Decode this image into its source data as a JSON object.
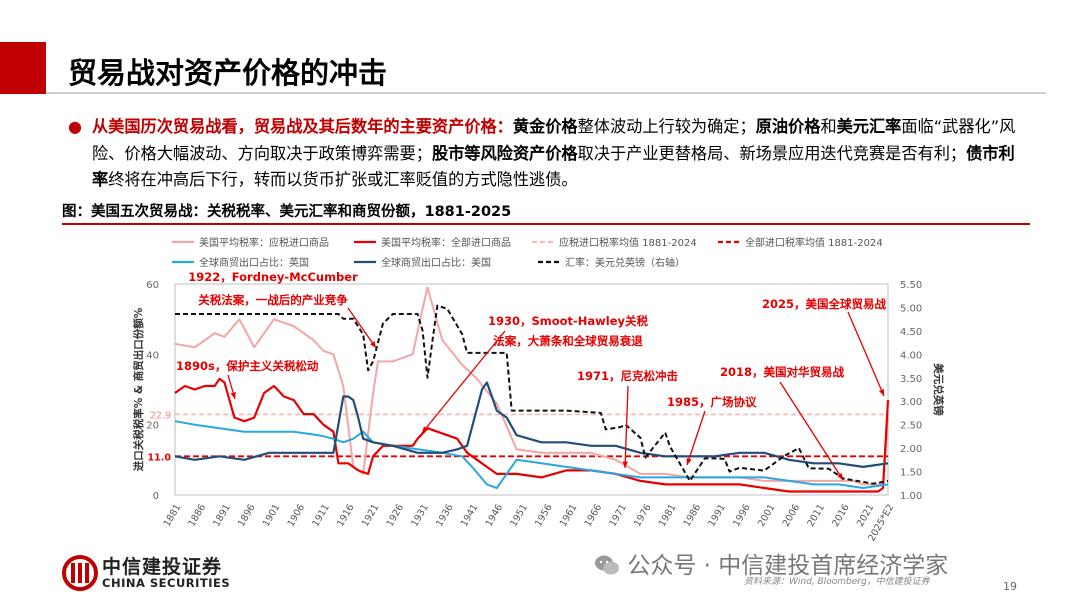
{
  "title": "贸易战对资产价格的冲击",
  "bullet": {
    "r1": "从美国历次贸易战看，贸易战及其后数年的主要资产价格：",
    "b1": "黄金价格",
    "t1": "整体波动上行较为确定；",
    "b2": "原油价格",
    "t2": "和",
    "b3": "美元汇率",
    "t3": "面临“武器化”风险、价格大幅波动、方向取决于政策博弈需要；",
    "b4": "股市等风险资产价格",
    "t4": "取决于产业更替格局、新场景应用迭代竞赛是否有利；",
    "b5": "债市利率",
    "t5": "终将在冲高后下行，转而以货币扩张或汇率贬值的方式隐性逃债。"
  },
  "figure_title": "图：美国五次贸易战：关税税率、美元汇率和商贸份额，1881-2025",
  "footer": {
    "logo_cn": "中信建投证券",
    "logo_en": "CHINA SECURITIES",
    "wechat": "公众号 · 中信建投首席经济学家",
    "source": "资料来源：Wind, Bloomberg，中信建投证券",
    "page": "19"
  },
  "colors": {
    "accent": "#c00000",
    "dutiable": "#f4a6a6",
    "all": "#e60000",
    "dutiable_avg": "#f4b8b8",
    "all_avg": "#e60000",
    "uk": "#29a8e0",
    "us": "#1f4e79",
    "fx": "#111111"
  },
  "chart_data": {
    "type": "line",
    "xlabel": "",
    "ylabel": "进口关税税率% & 商贸出口份额%",
    "y2label": "美元兑英镑",
    "ylim": [
      0,
      60
    ],
    "y2lim": [
      1.0,
      5.5
    ],
    "yticks": [
      "0",
      "20",
      "40",
      "60"
    ],
    "y2ticks": [
      "1.00",
      "1.50",
      "2.00",
      "2.50",
      "3.00",
      "3.50",
      "4.00",
      "4.50",
      "5.00",
      "5.50"
    ],
    "xticks": [
      "1881",
      "1886",
      "1891",
      "1896",
      "1901",
      "1906",
      "1911",
      "1916",
      "1921",
      "1926",
      "1931",
      "1936",
      "1941",
      "1946",
      "1951",
      "1956",
      "1961",
      "1966",
      "1971",
      "1976",
      "1981",
      "1986",
      "1991",
      "1996",
      "2001",
      "2006",
      "2011",
      "2016",
      "2021",
      "2025*E2"
    ],
    "legend": [
      "美国平均税率：应税进口商品",
      "美国平均税率：全部进口商品",
      "应税进口税率均值 1881-2024",
      "全部进口税率均值 1881-2024",
      "全球商贸出口占比：英国",
      "全球商贸出口占比：美国",
      "汇率：美元兑英镑（右轴）"
    ],
    "avg_labels": [
      "22.9",
      "11.0"
    ],
    "series": [
      {
        "name": "美国平均税率：应税进口商品",
        "axis": "left",
        "x": [
          1881,
          1885,
          1889,
          1891,
          1894,
          1897,
          1899,
          1901,
          1905,
          1909,
          1911,
          1913,
          1915,
          1917,
          1919,
          1921,
          1922,
          1925,
          1929,
          1931,
          1932,
          1935,
          1939,
          1942,
          1946,
          1950,
          1955,
          1960,
          1965,
          1970,
          1975,
          1980,
          1985,
          1990,
          1995,
          2000,
          2005,
          2010,
          2015,
          2018,
          2020,
          2023,
          2024,
          2025
        ],
        "values": [
          43,
          42,
          46,
          45,
          50,
          42,
          46,
          50,
          48,
          44,
          41,
          40,
          31,
          8,
          6,
          29,
          38,
          38,
          40,
          53,
          59,
          44,
          37,
          33,
          26,
          13,
          12,
          12,
          12,
          10,
          6,
          6,
          5,
          5,
          5,
          4,
          4,
          4,
          4,
          4,
          3,
          3,
          3,
          22
        ]
      },
      {
        "name": "美国平均税率：全部进口商品",
        "axis": "left",
        "x": [
          1881,
          1883,
          1885,
          1887,
          1889,
          1890,
          1891,
          1893,
          1895,
          1897,
          1899,
          1901,
          1903,
          1905,
          1907,
          1909,
          1911,
          1913,
          1914,
          1916,
          1918,
          1920,
          1921,
          1923,
          1925,
          1927,
          1929,
          1930,
          1932,
          1934,
          1936,
          1938,
          1940,
          1942,
          1944,
          1946,
          1948,
          1950,
          1955,
          1960,
          1965,
          1970,
          1975,
          1980,
          1985,
          1990,
          1995,
          2000,
          2005,
          2010,
          2015,
          2018,
          2020,
          2023,
          2024,
          2025
        ],
        "values": [
          29,
          31,
          30,
          31,
          31,
          33,
          32,
          22,
          21,
          22,
          29,
          31,
          28,
          27,
          23,
          23,
          20,
          18,
          9,
          9,
          7,
          6,
          11,
          14,
          14,
          14,
          14,
          16,
          19,
          18,
          17,
          16,
          12,
          10,
          8,
          6,
          6,
          6,
          5,
          7,
          7,
          6,
          4,
          3,
          3,
          3,
          3,
          2,
          1,
          1,
          1,
          1,
          1,
          1,
          2,
          27
        ]
      },
      {
        "name": "全球商贸出口占比：英国",
        "axis": "left",
        "x": [
          1881,
          1885,
          1890,
          1895,
          1900,
          1905,
          1910,
          1913,
          1915,
          1917,
          1919,
          1921,
          1925,
          1930,
          1935,
          1939,
          1941,
          1944,
          1946,
          1948,
          1950,
          1955,
          1960,
          1965,
          1970,
          1975,
          1980,
          1985,
          1990,
          1995,
          2000,
          2005,
          2010,
          2015,
          2020,
          2025
        ],
        "values": [
          21,
          20,
          19,
          18,
          18,
          18,
          17,
          16,
          15,
          16,
          18,
          15,
          14,
          13,
          12,
          11,
          8,
          3,
          2,
          6,
          10,
          9,
          8,
          7,
          6,
          5,
          5,
          5,
          5,
          5,
          5,
          4,
          3,
          3,
          2,
          3
        ]
      },
      {
        "name": "全球商贸出口占比：美国",
        "axis": "left",
        "x": [
          1881,
          1885,
          1890,
          1895,
          1900,
          1905,
          1910,
          1913,
          1915,
          1916,
          1917,
          1918,
          1919,
          1921,
          1925,
          1930,
          1935,
          1938,
          1940,
          1943,
          1944,
          1945,
          1946,
          1948,
          1950,
          1955,
          1960,
          1965,
          1970,
          1975,
          1980,
          1985,
          1990,
          1995,
          2000,
          2005,
          2010,
          2015,
          2020,
          2025
        ],
        "values": [
          11,
          10,
          11,
          10,
          12,
          12,
          12,
          12,
          28,
          28,
          27,
          22,
          16,
          15,
          14,
          12,
          12,
          13,
          14,
          30,
          32,
          28,
          24,
          22,
          17,
          15,
          15,
          14,
          14,
          12,
          11,
          11,
          11,
          12,
          12,
          10,
          9,
          9,
          8,
          9
        ]
      },
      {
        "name": "汇率：美元兑英镑（右轴）",
        "axis": "right",
        "x": [
          1881,
          1914,
          1915,
          1917,
          1919,
          1920,
          1921,
          1923,
          1925,
          1930,
          1931,
          1932,
          1933,
          1934,
          1936,
          1939,
          1940,
          1946,
          1948,
          1949,
          1960,
          1967,
          1968,
          1971,
          1972,
          1975,
          1976,
          1980,
          1981,
          1985,
          1988,
          1990,
          1992,
          1993,
          1995,
          2000,
          2004,
          2007,
          2009,
          2013,
          2016,
          2020,
          2022,
          2024,
          2025
        ],
        "values": [
          4.86,
          4.86,
          4.76,
          4.76,
          4.42,
          3.66,
          3.85,
          4.66,
          4.86,
          4.86,
          4.5,
          3.5,
          4.3,
          5.04,
          4.97,
          4.43,
          4.03,
          4.03,
          4.03,
          2.8,
          2.8,
          2.75,
          2.4,
          2.45,
          2.5,
          2.22,
          1.8,
          2.33,
          2.03,
          1.3,
          1.78,
          1.78,
          1.77,
          1.5,
          1.58,
          1.52,
          1.83,
          2.0,
          1.57,
          1.56,
          1.35,
          1.28,
          1.24,
          1.28,
          1.3
        ]
      }
    ],
    "hlines": [
      {
        "name": "应税进口税率均值 1881-2024",
        "value": 22.9
      },
      {
        "name": "全部进口税率均值 1881-2024",
        "value": 11.0
      }
    ],
    "annotations": [
      {
        "text": "1890s，保护主义关税松动"
      },
      {
        "text": "1922，Fordney-McCumber"
      },
      {
        "text": "关税法案，一战后的产业竞争"
      },
      {
        "text": "1930，Smoot-Hawley关税"
      },
      {
        "text": "法案，大萧条和全球贸易衰退"
      },
      {
        "text": "1971，尼克松冲击"
      },
      {
        "text": "1985，广场协议"
      },
      {
        "text": "2018，美国对华贸易战"
      },
      {
        "text": "2025，美国全球贸易战"
      }
    ]
  }
}
